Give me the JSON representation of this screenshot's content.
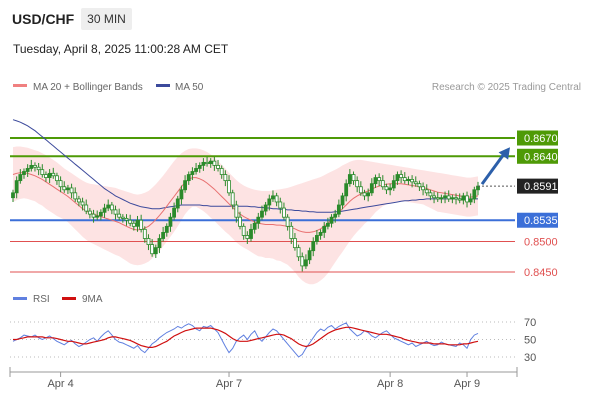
{
  "header": {
    "symbol": "USD/CHF",
    "timeframe": "30 MIN",
    "timestamp": "Tuesday, April 8, 2025 11:00:28 AM CET"
  },
  "legend": {
    "ma20_label": "MA 20 + Bollinger Bands",
    "ma50_label": "MA 50",
    "credit": "Research © 2025 Trading Central",
    "rsi_label": "RSI",
    "rsi_ma_label": "9MA"
  },
  "colors": {
    "resistance": "#4e9a06",
    "support": "#3b6fd8",
    "pivot_support": "#e05050",
    "bollinger_fill": "#fde3e3",
    "ma20": "#e87070",
    "ma50": "#3c4a9c",
    "candle": "#2b8a2b",
    "current_price": "#222222",
    "arrow": "#2c5faa",
    "rsi": "#6080e0",
    "rsi_ma": "#d01010"
  },
  "chart_data": {
    "type": "line",
    "price_axis_labels": [
      "0.8670",
      "0.8640",
      "0.8591",
      "0.8535",
      "0.8500",
      "0.8450"
    ],
    "levels": [
      {
        "value": 0.867,
        "label": "0.8670",
        "kind": "resistance"
      },
      {
        "value": 0.864,
        "label": "0.8640",
        "kind": "resistance"
      },
      {
        "value": 0.8535,
        "label": "0.8535",
        "kind": "support"
      },
      {
        "value": 0.85,
        "label": "0.8500",
        "kind": "support-minor"
      },
      {
        "value": 0.845,
        "label": "0.8450",
        "kind": "support-minor"
      }
    ],
    "current_price": {
      "value": 0.8591,
      "label": "0.8591"
    },
    "x_tick_labels": [
      "Apr 4",
      "Apr 7",
      "Apr 8",
      "Apr 9"
    ],
    "x_tick_index": [
      13,
      59,
      103,
      124
    ],
    "close": [
      0.858,
      0.86,
      0.861,
      0.8615,
      0.862,
      0.8625,
      0.8622,
      0.8618,
      0.861,
      0.8605,
      0.8612,
      0.8608,
      0.86,
      0.859,
      0.8585,
      0.8588,
      0.858,
      0.857,
      0.8565,
      0.856,
      0.855,
      0.8545,
      0.854,
      0.8542,
      0.8548,
      0.8555,
      0.856,
      0.8552,
      0.8545,
      0.854,
      0.8538,
      0.8535,
      0.853,
      0.8525,
      0.8535,
      0.852,
      0.8505,
      0.8495,
      0.848,
      0.849,
      0.8505,
      0.8515,
      0.8525,
      0.854,
      0.8555,
      0.857,
      0.8585,
      0.86,
      0.861,
      0.8615,
      0.862,
      0.8625,
      0.863,
      0.8628,
      0.8632,
      0.8625,
      0.862,
      0.861,
      0.86,
      0.858,
      0.856,
      0.854,
      0.8525,
      0.851,
      0.8505,
      0.852,
      0.853,
      0.854,
      0.855,
      0.856,
      0.857,
      0.8575,
      0.8565,
      0.8555,
      0.854,
      0.8525,
      0.8505,
      0.849,
      0.8475,
      0.846,
      0.847,
      0.8485,
      0.85,
      0.851,
      0.8515,
      0.8525,
      0.853,
      0.854,
      0.8545,
      0.856,
      0.8575,
      0.8595,
      0.861,
      0.86,
      0.859,
      0.858,
      0.8575,
      0.858,
      0.8595,
      0.8605,
      0.86,
      0.859,
      0.8585,
      0.8588,
      0.86,
      0.861,
      0.8605,
      0.86,
      0.8602,
      0.8598,
      0.8595,
      0.859,
      0.8585,
      0.858,
      0.8575,
      0.8572,
      0.857,
      0.8572,
      0.8575,
      0.857,
      0.8572,
      0.857,
      0.8568,
      0.8575,
      0.8565,
      0.857,
      0.8585,
      0.8591
    ],
    "ma20": [
      0.861,
      0.8612,
      0.8613,
      0.8613,
      0.8612,
      0.861,
      0.8608,
      0.8605,
      0.8602,
      0.8598,
      0.8594,
      0.859,
      0.8586,
      0.8582,
      0.8578,
      0.8574,
      0.8569,
      0.8564,
      0.8559,
      0.8554,
      0.855,
      0.8547,
      0.8545,
      0.8543,
      0.8541,
      0.8539,
      0.8537,
      0.8535,
      0.8533,
      0.8531,
      0.8528,
      0.8525,
      0.8522,
      0.852,
      0.8519,
      0.852,
      0.8522,
      0.8525,
      0.853,
      0.8536,
      0.8543,
      0.855,
      0.8558,
      0.8566,
      0.8574,
      0.8582,
      0.859,
      0.8597,
      0.8602,
      0.8605,
      0.8605,
      0.8603,
      0.86,
      0.8596,
      0.8591,
      0.8586,
      0.858,
      0.8574,
      0.8568,
      0.8562,
      0.8556,
      0.855,
      0.8545,
      0.8541,
      0.8538,
      0.8535,
      0.8532,
      0.853,
      0.8529,
      0.8528,
      0.8528,
      0.8528,
      0.8527,
      0.8527,
      0.8526,
      0.8525,
      0.8523,
      0.8521,
      0.8518,
      0.8516,
      0.8515,
      0.8515,
      0.8516,
      0.8518,
      0.8521,
      0.8525,
      0.853,
      0.8536,
      0.8542,
      0.8548,
      0.8554,
      0.856,
      0.8566,
      0.8571,
      0.8575,
      0.8578,
      0.8581,
      0.8583,
      0.8586,
      0.8589,
      0.8591,
      0.8593,
      0.8594,
      0.8595,
      0.8595,
      0.8595,
      0.8595,
      0.8594,
      0.8593,
      0.8592,
      0.8591,
      0.859,
      0.8589,
      0.8587,
      0.8585,
      0.8583,
      0.8581,
      0.858,
      0.8579,
      0.8578,
      0.8577,
      0.8576,
      0.8575,
      0.8574,
      0.8573,
      0.8573,
      0.8574,
      0.8575
    ],
    "bollinger_upper": [
      0.8655,
      0.8656,
      0.8656,
      0.8655,
      0.8654,
      0.8652,
      0.865,
      0.8648,
      0.8645,
      0.8642,
      0.8638,
      0.8634,
      0.863,
      0.8625,
      0.862,
      0.8616,
      0.8612,
      0.8608,
      0.8604,
      0.86,
      0.8597,
      0.8595,
      0.8594,
      0.8593,
      0.8592,
      0.8591,
      0.859,
      0.8589,
      0.8588,
      0.8586,
      0.8584,
      0.8582,
      0.858,
      0.8578,
      0.8577,
      0.8578,
      0.858,
      0.8583,
      0.8588,
      0.8594,
      0.8601,
      0.8608,
      0.8616,
      0.8624,
      0.8632,
      0.8639,
      0.8645,
      0.8649,
      0.8652,
      0.8653,
      0.8653,
      0.8652,
      0.865,
      0.8647,
      0.8643,
      0.8638,
      0.8632,
      0.8626,
      0.862,
      0.8613,
      0.8607,
      0.8601,
      0.8596,
      0.8592,
      0.8589,
      0.8587,
      0.8585,
      0.8584,
      0.8583,
      0.8583,
      0.8583,
      0.8584,
      0.8585,
      0.8586,
      0.8587,
      0.8588,
      0.859,
      0.8592,
      0.8594,
      0.8596,
      0.8598,
      0.86,
      0.8602,
      0.8604,
      0.8606,
      0.8609,
      0.8612,
      0.8615,
      0.8618,
      0.8621,
      0.8625,
      0.8628,
      0.8631,
      0.8633,
      0.8634,
      0.8634,
      0.8633,
      0.8632,
      0.8631,
      0.863,
      0.8629,
      0.8628,
      0.8627,
      0.8626,
      0.8625,
      0.8624,
      0.8623,
      0.8622,
      0.8621,
      0.862,
      0.8619,
      0.8618,
      0.8617,
      0.8616,
      0.8615,
      0.8614,
      0.8613,
      0.8612,
      0.8611,
      0.861,
      0.8609,
      0.8608,
      0.8607,
      0.8606,
      0.8605,
      0.8605,
      0.8606,
      0.8607
    ],
    "bollinger_lower": [
      0.8565,
      0.8568,
      0.857,
      0.8571,
      0.857,
      0.8568,
      0.8566,
      0.8562,
      0.8559,
      0.8554,
      0.855,
      0.8546,
      0.8542,
      0.8539,
      0.8536,
      0.8532,
      0.8526,
      0.852,
      0.8514,
      0.8508,
      0.8503,
      0.8499,
      0.8496,
      0.8493,
      0.849,
      0.8487,
      0.8484,
      0.8481,
      0.8478,
      0.8476,
      0.8472,
      0.8468,
      0.8464,
      0.8462,
      0.8461,
      0.8462,
      0.8464,
      0.8467,
      0.8472,
      0.8478,
      0.8485,
      0.8492,
      0.85,
      0.8508,
      0.8516,
      0.8525,
      0.8535,
      0.8545,
      0.8552,
      0.8557,
      0.8557,
      0.8554,
      0.855,
      0.8545,
      0.8539,
      0.8534,
      0.8528,
      0.8522,
      0.8516,
      0.8511,
      0.8505,
      0.8499,
      0.8494,
      0.849,
      0.8487,
      0.8483,
      0.8479,
      0.8476,
      0.8475,
      0.8473,
      0.8473,
      0.8472,
      0.8469,
      0.8468,
      0.8465,
      0.8462,
      0.8456,
      0.845,
      0.8442,
      0.8436,
      0.8432,
      0.843,
      0.843,
      0.8432,
      0.8436,
      0.8441,
      0.8448,
      0.8457,
      0.8466,
      0.8475,
      0.8483,
      0.8492,
      0.8501,
      0.8509,
      0.8516,
      0.8522,
      0.8529,
      0.8534,
      0.8541,
      0.8548,
      0.8553,
      0.8558,
      0.8561,
      0.8564,
      0.8565,
      0.8566,
      0.8567,
      0.8566,
      0.8565,
      0.8564,
      0.8563,
      0.8562,
      0.8561,
      0.8558,
      0.8555,
      0.8552,
      0.8549,
      0.8548,
      0.8547,
      0.8546,
      0.8545,
      0.8544,
      0.8543,
      0.8542,
      0.8541,
      0.8541,
      0.8542,
      0.8543
    ],
    "ma50": [
      0.87,
      0.8698,
      0.8696,
      0.8693,
      0.869,
      0.8686,
      0.8682,
      0.8677,
      0.8672,
      0.8667,
      0.8662,
      0.8657,
      0.8652,
      0.8647,
      0.8642,
      0.8637,
      0.8632,
      0.8627,
      0.8622,
      0.8617,
      0.8612,
      0.8607,
      0.8602,
      0.8597,
      0.8592,
      0.8587,
      0.8583,
      0.8579,
      0.8575,
      0.8572,
      0.8569,
      0.8566,
      0.8563,
      0.8561,
      0.8559,
      0.8557,
      0.8556,
      0.8555,
      0.8554,
      0.8554,
      0.8554,
      0.8555,
      0.8556,
      0.8557,
      0.8558,
      0.8559,
      0.856,
      0.856,
      0.856,
      0.856,
      0.856,
      0.856,
      0.8559,
      0.8559,
      0.8558,
      0.8558,
      0.8558,
      0.8558,
      0.8558,
      0.8558,
      0.8558,
      0.8558,
      0.8558,
      0.8558,
      0.8558,
      0.8557,
      0.8557,
      0.8556,
      0.8556,
      0.8555,
      0.8555,
      0.8554,
      0.8554,
      0.8553,
      0.8553,
      0.8552,
      0.8552,
      0.8551,
      0.8551,
      0.855,
      0.855,
      0.8549,
      0.8549,
      0.8548,
      0.8548,
      0.8548,
      0.8548,
      0.8548,
      0.8549,
      0.8549,
      0.855,
      0.8551,
      0.8552,
      0.8553,
      0.8554,
      0.8555,
      0.8556,
      0.8557,
      0.8558,
      0.8559,
      0.856,
      0.8561,
      0.8562,
      0.8563,
      0.8564,
      0.8565,
      0.8566,
      0.8567,
      0.8567,
      0.8568,
      0.8568,
      0.8569,
      0.8569,
      0.857,
      0.857,
      0.857,
      0.857,
      0.857,
      0.857,
      0.857,
      0.857,
      0.857,
      0.857,
      0.857,
      0.857,
      0.857,
      0.857,
      0.857
    ],
    "projection": {
      "from": 0.8591,
      "to": 0.8645
    },
    "rsi_axis": {
      "ylim": [
        20,
        80
      ],
      "ticks": [
        "70",
        "50",
        "30"
      ]
    },
    "rsi": [
      48,
      50,
      52,
      55,
      54,
      53,
      55,
      52,
      50,
      52,
      54,
      51,
      48,
      46,
      44,
      47,
      49,
      45,
      42,
      44,
      47,
      50,
      52,
      48,
      53,
      57,
      60,
      55,
      50,
      47,
      46,
      44,
      42,
      40,
      43,
      38,
      35,
      40,
      45,
      48,
      52,
      55,
      58,
      60,
      62,
      65,
      63,
      66,
      68,
      66,
      62,
      60,
      65,
      64,
      66,
      62,
      58,
      50,
      42,
      35,
      40,
      48,
      52,
      55,
      50,
      56,
      60,
      52,
      48,
      53,
      58,
      62,
      60,
      55,
      50,
      45,
      40,
      35,
      30,
      33,
      40,
      46,
      52,
      58,
      62,
      60,
      64,
      66,
      62,
      65,
      67,
      69,
      62,
      58,
      54,
      56,
      60,
      58,
      54,
      52,
      55,
      58,
      60,
      56,
      52,
      50,
      48,
      46,
      44,
      46,
      42,
      44,
      46,
      48,
      45,
      43,
      44,
      47,
      45,
      44,
      43,
      42,
      46,
      44,
      40,
      50,
      55,
      57
    ],
    "rsi_ma": [
      50,
      50,
      51,
      52,
      53,
      53,
      53,
      53,
      53,
      52,
      52,
      52,
      51,
      50,
      49,
      48,
      48,
      47,
      46,
      45,
      45,
      46,
      47,
      48,
      49,
      50,
      52,
      53,
      53,
      52,
      51,
      50,
      49,
      47,
      45,
      43,
      42,
      41,
      41,
      42,
      44,
      46,
      48,
      51,
      54,
      56,
      58,
      60,
      61,
      62,
      63,
      63,
      63,
      63,
      63,
      62,
      61,
      59,
      57,
      54,
      51,
      49,
      48,
      48,
      48,
      49,
      50,
      51,
      52,
      53,
      54,
      55,
      56,
      56,
      55,
      53,
      51,
      48,
      45,
      43,
      42,
      43,
      45,
      48,
      51,
      54,
      57,
      59,
      61,
      62,
      63,
      64,
      64,
      63,
      62,
      61,
      60,
      59,
      58,
      57,
      56,
      56,
      56,
      55,
      54,
      53,
      52,
      50,
      49,
      48,
      47,
      46,
      46,
      46,
      46,
      45,
      45,
      45,
      45,
      44,
      44,
      44,
      44,
      45,
      45,
      46,
      47,
      48
    ]
  }
}
